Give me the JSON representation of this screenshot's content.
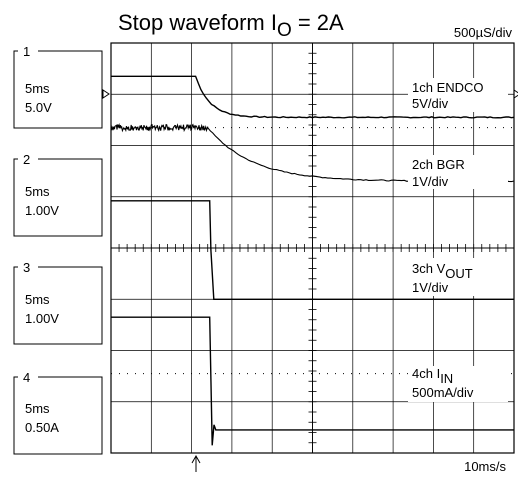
{
  "title": {
    "main": "Stop waveform I",
    "sub": "O",
    "rest": " = 2A"
  },
  "timebase": "500µS/div",
  "sample_rate": "10ms/s",
  "channels": [
    {
      "num": "1",
      "line1": "5ms",
      "line2": "5.0V"
    },
    {
      "num": "2",
      "line1": "5ms",
      "line2": "1.00V"
    },
    {
      "num": "3",
      "line1": "5ms",
      "line2": "1.00V"
    },
    {
      "num": "4",
      "line1": "5ms",
      "line2": "0.50A"
    }
  ],
  "traces": [
    {
      "name_pre": "1ch ENDCO",
      "name_sub": "",
      "scale": "5V/div"
    },
    {
      "name_pre": "2ch BGR",
      "name_sub": "",
      "scale": "1V/div"
    },
    {
      "name_pre": "3ch V",
      "name_sub": "OUT",
      "scale": "1V/div"
    },
    {
      "name_pre": "4ch I",
      "name_sub": "IN",
      "scale": "500mA/div"
    }
  ],
  "chart_data": {
    "type": "line",
    "x_divisions": 10,
    "y_divisions": 8,
    "grid": true,
    "trigger_time_div": 2.2,
    "series": [
      {
        "name": "1ch ENDCO",
        "segments": [
          {
            "kind": "flat",
            "t": [
              0,
              2.1
            ],
            "level": 7.35
          },
          {
            "kind": "exp",
            "t": [
              2.1,
              10
            ],
            "from": 7.35,
            "to": 6.55,
            "tau": 0.35
          }
        ]
      },
      {
        "name": "2ch BGR",
        "segments": [
          {
            "kind": "noisy",
            "t": [
              0,
              2.4
            ],
            "level": 6.35,
            "noise": 0.06
          },
          {
            "kind": "exp",
            "t": [
              2.4,
              10
            ],
            "from": 6.35,
            "to": 5.3,
            "tau": 1.1
          }
        ]
      },
      {
        "name": "3ch VOUT",
        "segments": [
          {
            "kind": "flat",
            "t": [
              0,
              2.45
            ],
            "level": 4.92
          },
          {
            "kind": "drop",
            "t": [
              2.45,
              2.55
            ],
            "from": 4.92,
            "to": 3.0
          },
          {
            "kind": "flat",
            "t": [
              2.55,
              10
            ],
            "level": 3.0
          }
        ]
      },
      {
        "name": "4ch IIN",
        "segments": [
          {
            "kind": "flat",
            "t": [
              0,
              2.45
            ],
            "level": 2.65
          },
          {
            "kind": "spike",
            "t": [
              2.45,
              2.6
            ],
            "from": 2.65,
            "min": 0.15,
            "to": 0.45
          },
          {
            "kind": "flat",
            "t": [
              2.6,
              10
            ],
            "level": 0.45
          }
        ]
      }
    ]
  }
}
